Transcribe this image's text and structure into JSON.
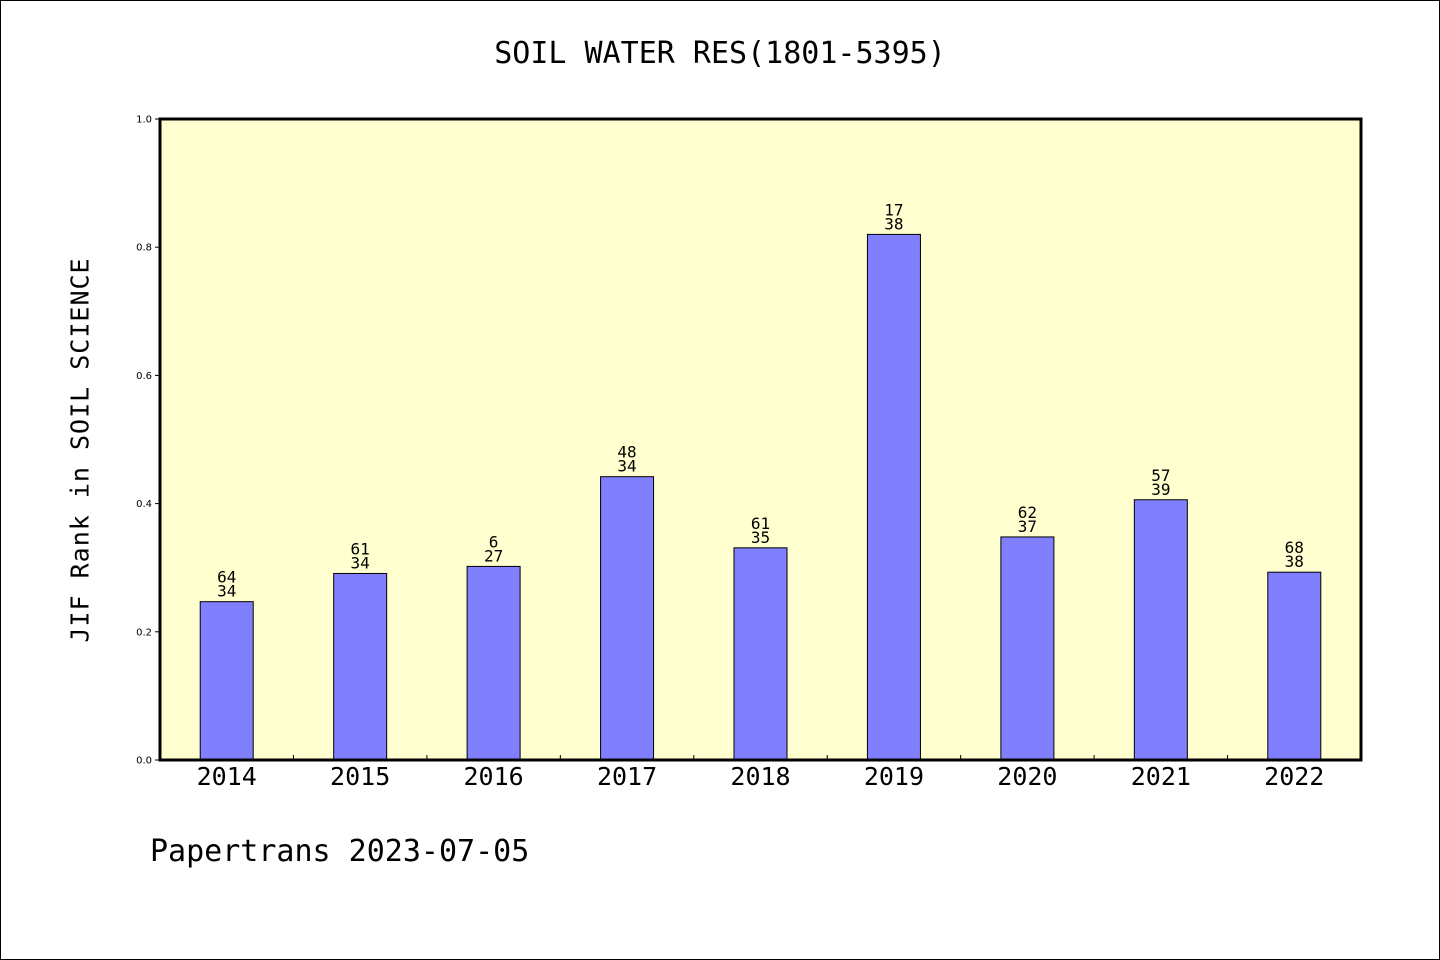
{
  "chart_data": {
    "type": "bar",
    "title": "SOIL WATER RES(1801-5395)",
    "xlabel": "",
    "ylabel": "JIF Rank in SOIL SCIENCE",
    "ylim": [
      0,
      1.0
    ],
    "yticks": [
      "0.0",
      "0.2",
      "0.4",
      "0.6",
      "0.8",
      "1.0"
    ],
    "grid": false,
    "categories": [
      "2014",
      "2015",
      "2016",
      "2017",
      "2018",
      "2019",
      "2020",
      "2021",
      "2022"
    ],
    "values": [
      0.247,
      0.291,
      0.302,
      0.442,
      0.331,
      0.82,
      0.348,
      0.406,
      0.293
    ],
    "data_labels": [
      [
        "64",
        "34"
      ],
      [
        "61",
        "34"
      ],
      [
        "6",
        "27"
      ],
      [
        "48",
        "34"
      ],
      [
        "61",
        "35"
      ],
      [
        "17",
        "38"
      ],
      [
        "62",
        "37"
      ],
      [
        "57",
        "39"
      ],
      [
        "68",
        "38"
      ]
    ],
    "colors": {
      "plot_background": "#ffffd0",
      "bar_fill": "#8080ff",
      "bar_stroke": "#000000"
    }
  },
  "footer": "Papertrans 2023-07-05"
}
